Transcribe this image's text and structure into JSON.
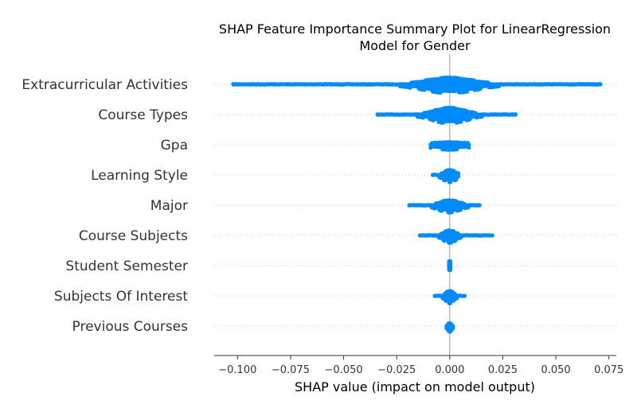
{
  "chart_data": {
    "type": "scatter",
    "title_lines": [
      "SHAP Feature Importance Summary Plot for LinearRegression",
      "Model for Gender"
    ],
    "xlabel": "SHAP value (impact on model output)",
    "ylabel": "",
    "xlim": [
      -0.111,
      0.0785
    ],
    "xticks": [
      -0.1,
      -0.075,
      -0.05,
      -0.025,
      0.0,
      0.025,
      0.05,
      0.075
    ],
    "xtick_labels": [
      "−0.100",
      "−0.075",
      "−0.050",
      "−0.025",
      "0.000",
      "0.025",
      "0.050",
      "0.075"
    ],
    "grid": false,
    "point_color": "#008bfb",
    "features": [
      {
        "name": "Extracurricular Activities",
        "min": -0.102,
        "max": 0.071,
        "spread": 0.012,
        "max_half_height": 11,
        "outliers": [
          -0.102,
          -0.1,
          -0.083,
          -0.082,
          -0.073,
          -0.068,
          -0.066,
          -0.062,
          -0.056,
          -0.054,
          0.058,
          0.062,
          0.064,
          0.067,
          0.071
        ]
      },
      {
        "name": "Course Types",
        "min": -0.034,
        "max": 0.031,
        "spread": 0.008,
        "max_half_height": 11,
        "outliers": [
          -0.034,
          -0.032,
          -0.026,
          -0.02,
          -0.019,
          0.023,
          0.026,
          0.03,
          0.031
        ]
      },
      {
        "name": "Gpa",
        "min": -0.009,
        "max": 0.009,
        "spread": 0.009,
        "max_half_height": 6,
        "outliers": []
      },
      {
        "name": "Learning Style",
        "min": -0.008,
        "max": 0.004,
        "spread": 0.003,
        "max_half_height": 9,
        "outliers": [
          -0.008
        ]
      },
      {
        "name": "Major",
        "min": -0.019,
        "max": 0.014,
        "spread": 0.005,
        "max_half_height": 9,
        "outliers": [
          -0.019,
          0.014
        ]
      },
      {
        "name": "Course Subjects",
        "min": -0.014,
        "max": 0.02,
        "spread": 0.003,
        "max_half_height": 9,
        "outliers": [
          -0.014,
          0.011,
          0.02
        ]
      },
      {
        "name": "Student Semester",
        "min": -0.0003,
        "max": 0.0003,
        "spread": 0.0008,
        "max_half_height": 8,
        "outliers": []
      },
      {
        "name": "Subjects Of Interest",
        "min": -0.007,
        "max": 0.007,
        "spread": 0.002,
        "max_half_height": 9,
        "outliers": [
          -0.007,
          0.007
        ]
      },
      {
        "name": "Previous Courses",
        "min": -0.0015,
        "max": 0.0015,
        "spread": 0.001,
        "max_half_height": 7,
        "outliers": []
      }
    ]
  }
}
